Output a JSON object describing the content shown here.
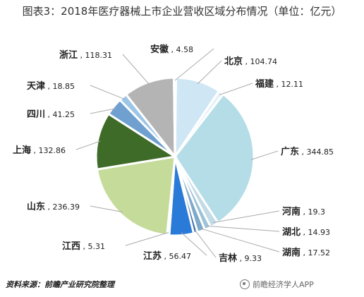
{
  "title": "图表3：2018年医疗器械上市企业营收区域分布情况（单位：亿元）",
  "source": "资料来源：前瞻产业研究院整理",
  "watermark": "前瞻经济学人APP",
  "chart_data": {
    "type": "pie",
    "unit": "亿元",
    "series": [
      {
        "label": "北京",
        "value": 104.74,
        "color": "#cfe6f5"
      },
      {
        "label": "福建",
        "value": 12.11,
        "color": "#e6f1f8"
      },
      {
        "label": "广东",
        "value": 344.85,
        "color": "#b5dde8"
      },
      {
        "label": "河南",
        "value": 19.3,
        "color": "#c3dbe6"
      },
      {
        "label": "湖北",
        "value": 14.93,
        "color": "#9ec2d8"
      },
      {
        "label": "湖南",
        "value": 17.52,
        "color": "#7ea9c8"
      },
      {
        "label": "吉林",
        "value": 9.33,
        "color": "#3f6faa"
      },
      {
        "label": "江苏",
        "value": 56.47,
        "color": "#2a7bd8"
      },
      {
        "label": "江西",
        "value": 5.31,
        "color": "#5a8a4a"
      },
      {
        "label": "山东",
        "value": 236.39,
        "color": "#c5db9a"
      },
      {
        "label": "上海",
        "value": 132.86,
        "color": "#3e6b28"
      },
      {
        "label": "四川",
        "value": 41.25,
        "color": "#6fa0d0"
      },
      {
        "label": "天津",
        "value": 18.85,
        "color": "#9cc6e8"
      },
      {
        "label": "浙江",
        "value": 118.31,
        "color": "#b4b4b4"
      },
      {
        "label": "安徽",
        "value": 4.58,
        "color": "#d6d6d6"
      }
    ]
  }
}
